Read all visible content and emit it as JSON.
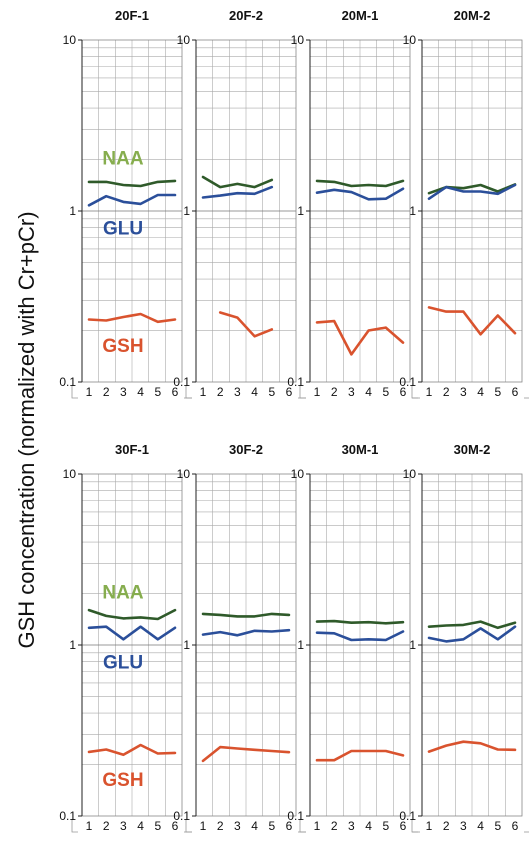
{
  "y_axis_label": "GSH concentration (normalized with Cr+pCr)",
  "colors": {
    "NAA": "#2f5a2a",
    "GLU": "#2b4f9a",
    "GSH": "#d9532e",
    "NAA_label": "#86ad4e",
    "grid": "#aaaaaa"
  },
  "metabolite_labels": [
    "NAA",
    "GLU",
    "GSH"
  ],
  "chart_data": {
    "type": "line",
    "yscale": "log",
    "ylim": [
      0.1,
      10
    ],
    "ytick_labels": [
      "10",
      "1",
      "0.1"
    ],
    "x": [
      1,
      2,
      3,
      4,
      5,
      6
    ],
    "xtick_labels": [
      "1",
      "2",
      "3",
      "4",
      "5",
      "6"
    ],
    "panels": [
      {
        "title": "20F-1",
        "series": [
          {
            "name": "NAA",
            "values": [
              1.48,
              1.48,
              1.42,
              1.4,
              1.48,
              1.5
            ]
          },
          {
            "name": "GLU",
            "values": [
              1.08,
              1.22,
              1.13,
              1.1,
              1.24,
              1.24
            ]
          },
          {
            "name": "GSH",
            "values": [
              0.232,
              0.229,
              0.24,
              0.25,
              0.225,
              0.232
            ]
          }
        ]
      },
      {
        "title": "20F-2",
        "series": [
          {
            "name": "NAA",
            "values": [
              1.58,
              1.38,
              1.44,
              1.38,
              1.52,
              null
            ]
          },
          {
            "name": "GLU",
            "values": [
              1.2,
              1.23,
              1.27,
              1.26,
              1.38,
              null
            ]
          },
          {
            "name": "GSH",
            "values": [
              null,
              0.255,
              0.238,
              0.185,
              0.203,
              null
            ]
          }
        ]
      },
      {
        "title": "20M-1",
        "series": [
          {
            "name": "NAA",
            "values": [
              1.5,
              1.48,
              1.4,
              1.42,
              1.4,
              1.5
            ]
          },
          {
            "name": "GLU",
            "values": [
              1.28,
              1.33,
              1.29,
              1.17,
              1.18,
              1.35
            ]
          },
          {
            "name": "GSH",
            "values": [
              0.223,
              0.227,
              0.145,
              0.2,
              0.208,
              0.17
            ]
          }
        ]
      },
      {
        "title": "20M-2",
        "series": [
          {
            "name": "NAA",
            "values": [
              1.27,
              1.38,
              1.36,
              1.42,
              1.3,
              1.43
            ]
          },
          {
            "name": "GLU",
            "values": [
              1.18,
              1.38,
              1.3,
              1.3,
              1.26,
              1.42
            ]
          },
          {
            "name": "GSH",
            "values": [
              0.273,
              0.258,
              0.258,
              0.19,
              0.245,
              0.193
            ]
          }
        ]
      },
      {
        "title": "30F-1",
        "series": [
          {
            "name": "NAA",
            "values": [
              1.6,
              1.48,
              1.43,
              1.45,
              1.42,
              1.6
            ]
          },
          {
            "name": "GLU",
            "values": [
              1.26,
              1.28,
              1.08,
              1.28,
              1.08,
              1.26
            ]
          },
          {
            "name": "GSH",
            "values": [
              0.237,
              0.245,
              0.228,
              0.26,
              0.232,
              0.234
            ]
          }
        ]
      },
      {
        "title": "30F-2",
        "series": [
          {
            "name": "NAA",
            "values": [
              1.52,
              1.5,
              1.47,
              1.47,
              1.52,
              1.5
            ]
          },
          {
            "name": "GLU",
            "values": [
              1.15,
              1.19,
              1.14,
              1.21,
              1.2,
              1.22
            ]
          },
          {
            "name": "GSH",
            "values": [
              0.21,
              0.253,
              0.248,
              0.244,
              0.24,
              0.236
            ]
          }
        ]
      },
      {
        "title": "30M-1",
        "series": [
          {
            "name": "NAA",
            "values": [
              1.37,
              1.38,
              1.35,
              1.36,
              1.34,
              1.36
            ]
          },
          {
            "name": "GLU",
            "values": [
              1.18,
              1.17,
              1.07,
              1.08,
              1.07,
              1.2
            ]
          },
          {
            "name": "GSH",
            "values": [
              0.212,
              0.212,
              0.24,
              0.24,
              0.24,
              0.226
            ]
          }
        ]
      },
      {
        "title": "30M-2",
        "series": [
          {
            "name": "NAA",
            "values": [
              1.28,
              1.3,
              1.31,
              1.37,
              1.26,
              1.35
            ]
          },
          {
            "name": "GLU",
            "values": [
              1.1,
              1.05,
              1.08,
              1.25,
              1.08,
              1.28
            ]
          },
          {
            "name": "GSH",
            "values": [
              0.238,
              0.258,
              0.272,
              0.266,
              0.245,
              0.244
            ]
          }
        ]
      }
    ]
  }
}
